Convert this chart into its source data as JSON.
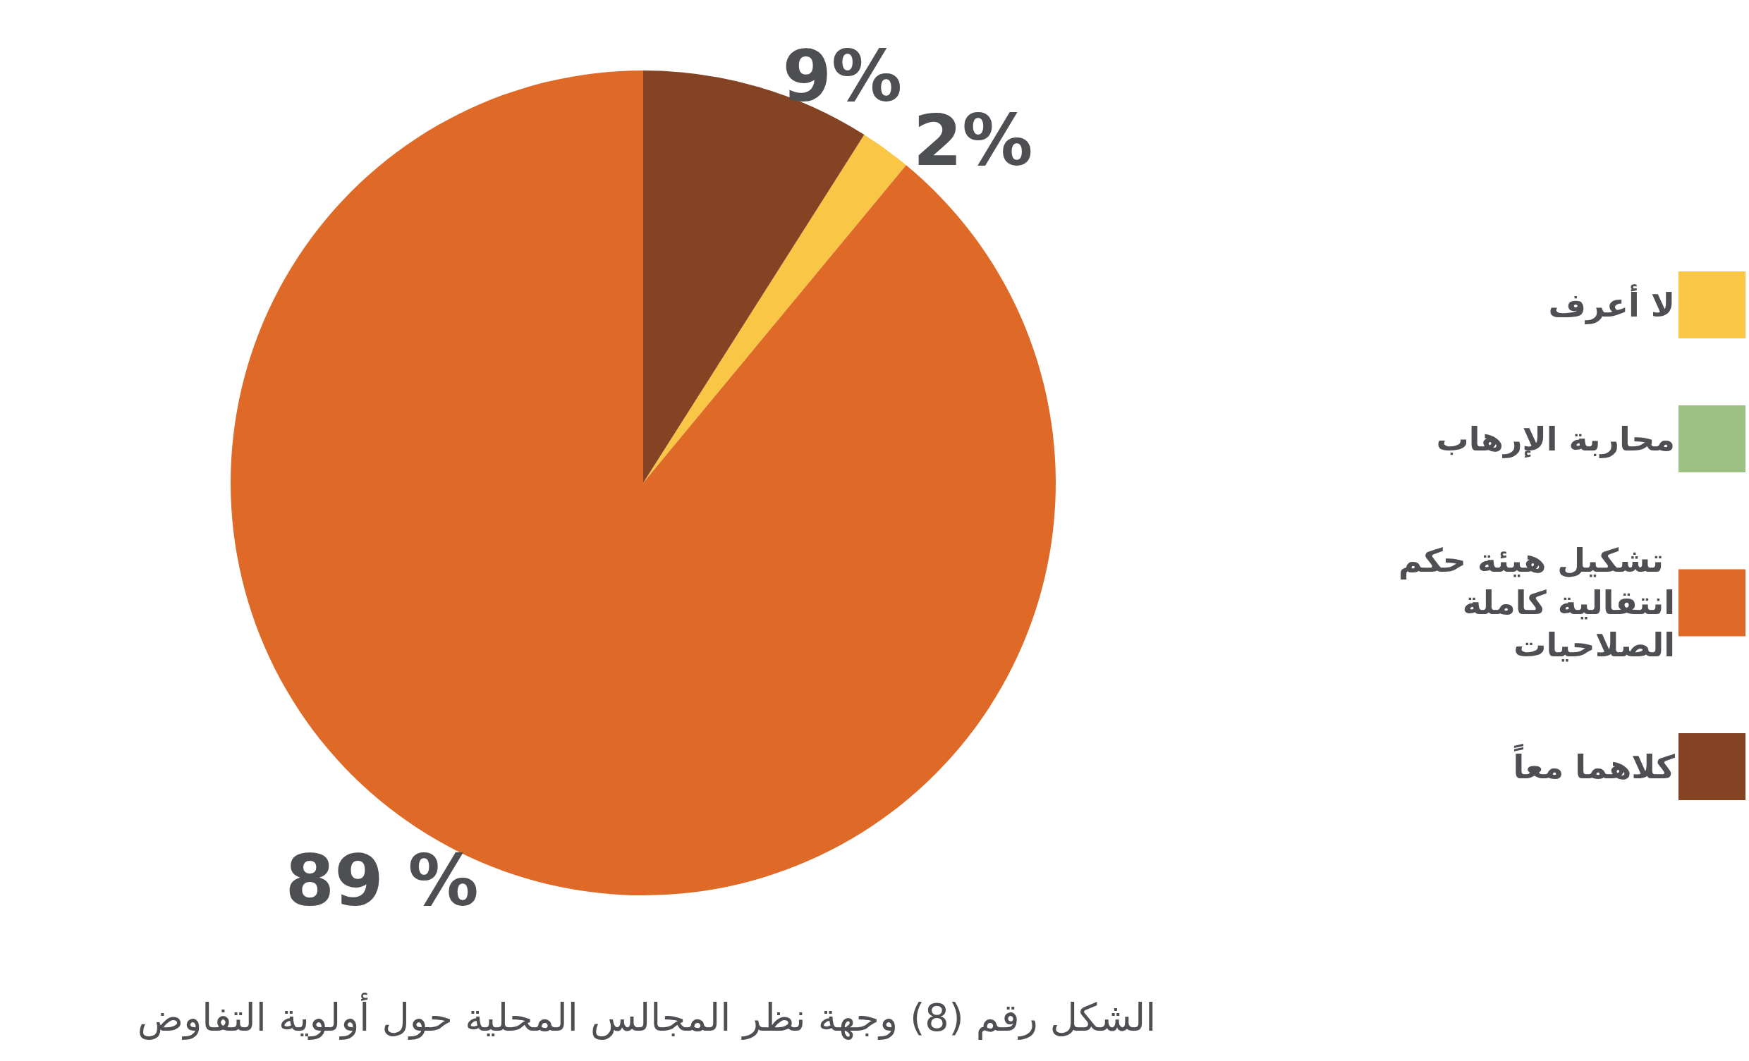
{
  "chart_data": {
    "type": "pie",
    "title": "الشكل رقم (8) وجهة نظر المجالس المحلية حول أولوية التفاوض",
    "categories": [
      "لا أعرف",
      "محاربة الإرهاب",
      "تشكيل هيئة حكم انتقالية كاملة الصلاحيات",
      "كلاهما معاً"
    ],
    "values": [
      2,
      0,
      89,
      9
    ],
    "colors": [
      "#f9c646",
      "#9dc183",
      "#df6a27",
      "#844424"
    ],
    "value_labels": [
      "2%",
      null,
      "89 %",
      "9%"
    ],
    "legend": "right"
  }
}
